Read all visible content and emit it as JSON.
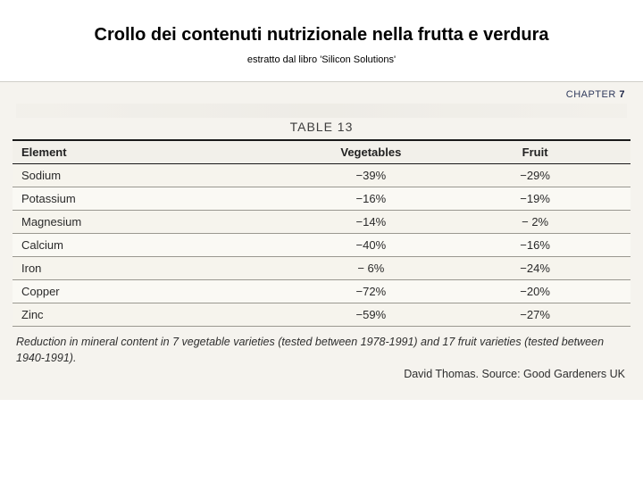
{
  "title": "Crollo dei contenuti nutrizionale nella frutta e verdura",
  "subtitle": "estratto dal libro 'Silicon Solutions'",
  "chapter_label": "CHAPTER",
  "chapter_number": "7",
  "table_caption": "TABLE 13",
  "headers": {
    "element": "Element",
    "vegetables": "Vegetables",
    "fruit": "Fruit"
  },
  "rows": [
    {
      "element": "Sodium",
      "veg": "−39%",
      "fruit": "−29%"
    },
    {
      "element": "Potassium",
      "veg": "−16%",
      "fruit": "−19%"
    },
    {
      "element": "Magnesium",
      "veg": "−14%",
      "fruit": "− 2%"
    },
    {
      "element": "Calcium",
      "veg": "−40%",
      "fruit": "−16%"
    },
    {
      "element": "Iron",
      "veg": "− 6%",
      "fruit": "−24%"
    },
    {
      "element": "Copper",
      "veg": "−72%",
      "fruit": "−20%"
    },
    {
      "element": "Zinc",
      "veg": "−59%",
      "fruit": "−27%"
    }
  ],
  "footnote": "Reduction in mineral content in 7 vegetable varieties (tested between 1978-1991) and 17 fruit varieties (tested between 1940-1991).",
  "source": "David Thomas. Source: Good Gardeners UK",
  "colors": {
    "page_bg": "#ffffff",
    "scan_bg": "#f5f3ee",
    "table_bg": "#faf9f4",
    "rule_dark": "#1a1a1a",
    "rule_light": "#9a9890",
    "text": "#2a2a2a",
    "chapter": "#1a2244"
  }
}
